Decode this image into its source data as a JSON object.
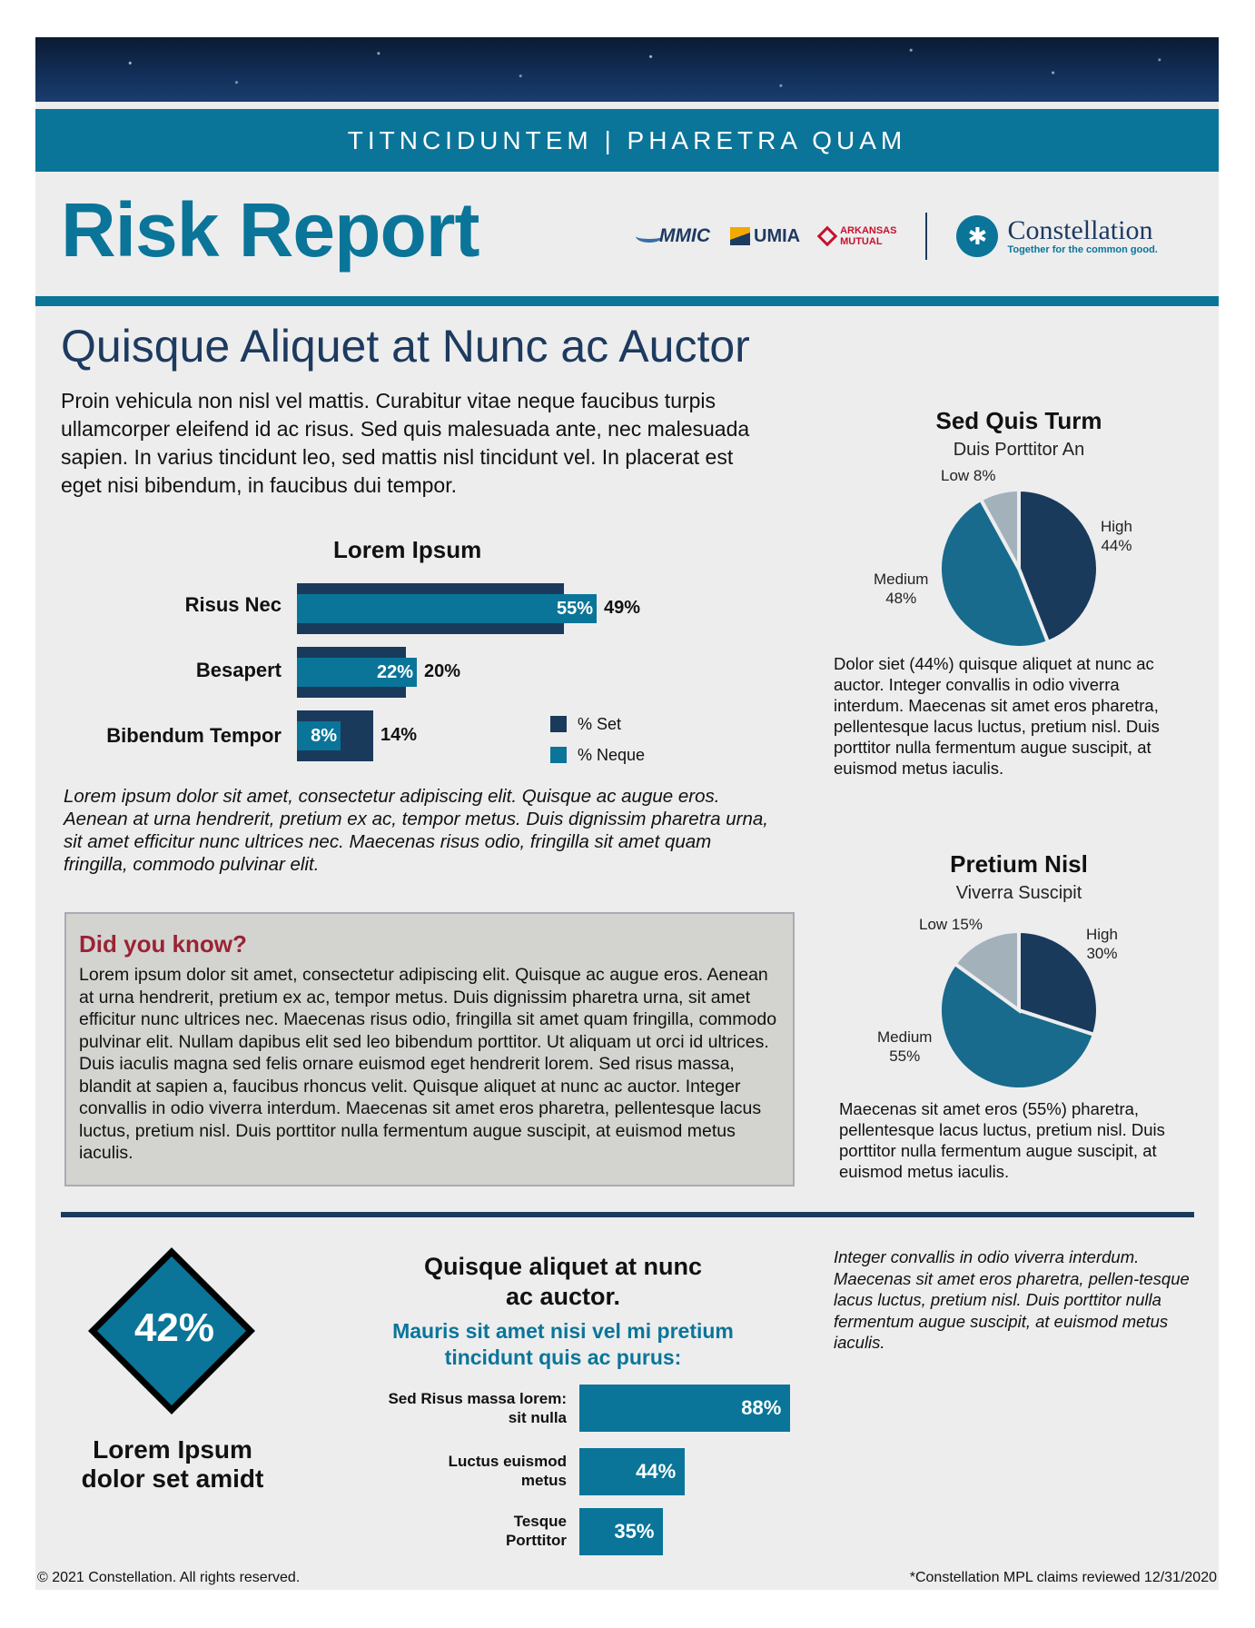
{
  "header": {
    "banner_text": "TITNCIDUNTEM | PHARETRA QUAM",
    "title": "Risk Report",
    "logos": {
      "mmic": "MMIC",
      "umia": "UMIA",
      "arkansas_1": "ARKANSAS",
      "arkansas_2": "MUTUAL",
      "constellation": "Constellation",
      "constellation_tagline": "Together for the common good.",
      "constellation_mark": "✱"
    }
  },
  "main": {
    "heading": "Quisque Aliquet at Nunc ac Auctor",
    "intro": "Proin vehicula non nisl vel mattis. Curabitur vitae neque faucibus turpis ullamcorper eleifend id ac risus. Sed quis malesuada ante, nec malesuada sapien. In varius tincidunt leo, sed mattis nisl tincidunt vel. In placerat est eget nisi bibendum, in faucibus dui tempor.",
    "bar_caption": "Lorem ipsum dolor sit amet, consectetur adipiscing elit. Quisque ac augue eros. Aenean at urna hendrerit, pretium ex ac, tempor metus. Duis dignissim pharetra urna, sit amet efficitur nunc ultrices nec. Maecenas risus odio, fringilla sit amet quam fringilla, commodo pulvinar elit."
  },
  "did_you_know": {
    "heading": "Did you know?",
    "body": "Lorem ipsum dolor sit amet, consectetur adipiscing elit. Quisque ac augue eros. Aenean at urna hendrerit, pretium ex ac, tempor metus. Duis dignissim pharetra urna, sit amet efficitur nunc ultrices nec. Maecenas risus odio, fringilla sit amet quam fringilla, commodo pulvinar elit. Nullam dapibus elit sed leo bibendum porttitor. Ut aliquam ut orci id ultrices. Duis iaculis magna sed felis ornare euismod eget hendrerit lorem. Sed risus massa, blandit at sapien a, faucibus rhoncus velit. Quisque aliquet at nunc ac auctor. Integer convallis in odio viverra interdum. Maecenas sit amet eros pharetra, pellentesque lacus luctus, pretium nisl. Duis porttitor nulla fermentum augue suscipit, at euismod metus iaculis."
  },
  "pie1": {
    "text": "Dolor siet (44%) quisque aliquet at nunc ac auctor. Integer convallis in odio viverra interdum. Maecenas sit amet eros pharetra, pellentesque lacus luctus, pretium nisl. Duis porttitor nulla fermentum augue suscipit, at euismod metus iaculis.",
    "labels": {
      "high_1": "High",
      "high_2": "44%",
      "medium_1": "Medium",
      "medium_2": "48%",
      "low": "Low 8%"
    }
  },
  "pie2": {
    "text": "Maecenas sit amet eros (55%) pharetra, pellentesque lacus luctus, pretium nisl. Duis porttitor nulla fermentum augue suscipit, at euismod metus iaculis.",
    "labels": {
      "high_1": "High",
      "high_2": "30%",
      "medium_1": "Medium",
      "medium_2": "55%",
      "low": "Low 15%"
    }
  },
  "kpi": {
    "value": "42%",
    "caption_1": "Lorem Ipsum",
    "caption_2": "dolor set amidt"
  },
  "quisque": {
    "title_1": "Quisque aliquet at nunc",
    "title_2": "ac auctor.",
    "sub_1": "Mauris sit amet nisi vel mi pretium",
    "sub_2": "tincidunt quis ac purus:",
    "bars": [
      {
        "label_1": "Sed Risus massa lorem:",
        "label_2": "sit nulla",
        "value_label": "88%"
      },
      {
        "label_1": "Luctus euismod",
        "label_2": "metus",
        "value_label": "44%"
      },
      {
        "label_1": "Tesque",
        "label_2": "Porttitor",
        "value_label": "35%"
      }
    ]
  },
  "side_note": "Integer convallis in odio viverra interdum. Maecenas sit amet eros pharetra, pellen-tesque lacus luctus, pretium nisl. Duis porttitor nulla fermentum augue suscipit, at euismod metus iaculis.",
  "footer": {
    "left": "© 2021 Constellation. All rights reserved.",
    "right": "*Constellation MPL claims reviewed 12/31/2020"
  },
  "colors": {
    "teal": "#0a7599",
    "navy": "#1a3a5c",
    "gray": "#a3b1bb",
    "red": "#9b2335"
  },
  "chart_data": [
    {
      "type": "bar",
      "title": "Lorem Ipsum",
      "categories": [
        "Risus Nec",
        "Besapert",
        "Bibendum Tempor"
      ],
      "series": [
        {
          "name": "% Set",
          "values": [
            49,
            20,
            14
          ]
        },
        {
          "name": "% Neque",
          "values": [
            55,
            22,
            8
          ]
        }
      ],
      "value_labels": {
        "set": [
          "49%",
          "20%",
          "14%"
        ],
        "neque": [
          "55%",
          "22%",
          "8%"
        ]
      },
      "legend": "right",
      "orientation": "horizontal"
    },
    {
      "type": "pie",
      "title": "Sed Quis Turm",
      "subtitle": "Duis Porttitor An",
      "categories": [
        "High",
        "Medium",
        "Low"
      ],
      "values": [
        44,
        48,
        8
      ]
    },
    {
      "type": "pie",
      "title": "Pretium Nisl",
      "subtitle": "Viverra Suscipit",
      "categories": [
        "High",
        "Medium",
        "Low"
      ],
      "values": [
        30,
        55,
        15
      ]
    },
    {
      "type": "bar",
      "title": "",
      "categories": [
        "Sed Risus massa lorem: sit nulla",
        "Luctus euismod metus",
        "Tesque Porttitor"
      ],
      "values": [
        88,
        44,
        35
      ],
      "orientation": "horizontal"
    }
  ]
}
